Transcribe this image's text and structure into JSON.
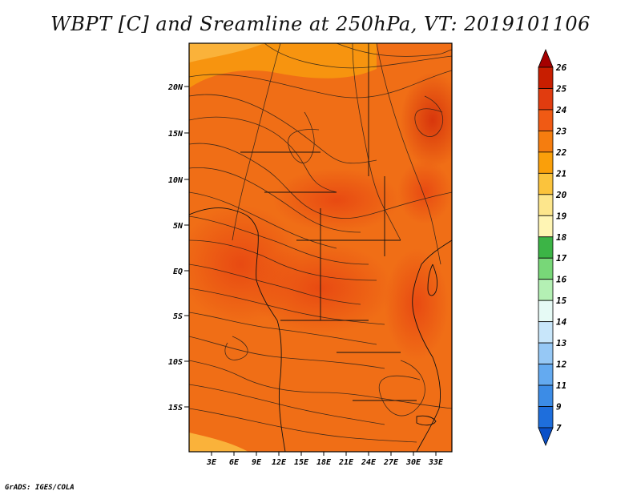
{
  "title": "WBPT [C] and Sreamline at 250hPa, VT: 2019101106",
  "credit": "GrADS: IGES/COLA",
  "map": {
    "lat_labels": [
      "20N",
      "15N",
      "10N",
      "5N",
      "EQ",
      "5S",
      "10S",
      "15S"
    ],
    "lon_labels": [
      "3E",
      "6E",
      "9E",
      "12E",
      "15E",
      "18E",
      "21E",
      "24E",
      "27E",
      "30E",
      "33E"
    ]
  },
  "colorbar": {
    "labels": [
      "26",
      "25",
      "24",
      "23",
      "22",
      "21",
      "20",
      "19",
      "18",
      "17",
      "16",
      "15",
      "14",
      "13",
      "12",
      "11",
      "9",
      "7"
    ],
    "colors": [
      "#a50000",
      "#c81e00",
      "#e13c0f",
      "#f05a14",
      "#f57d0f",
      "#fa9f0a",
      "#fbc33c",
      "#fde68c",
      "#fff5b4",
      "#3cb446",
      "#78d778",
      "#b4f0b4",
      "#e6faf5",
      "#c8e6fa",
      "#96c8f5",
      "#64aaf0",
      "#3c8ce6",
      "#1e6edc",
      "#0a50c8"
    ]
  }
}
